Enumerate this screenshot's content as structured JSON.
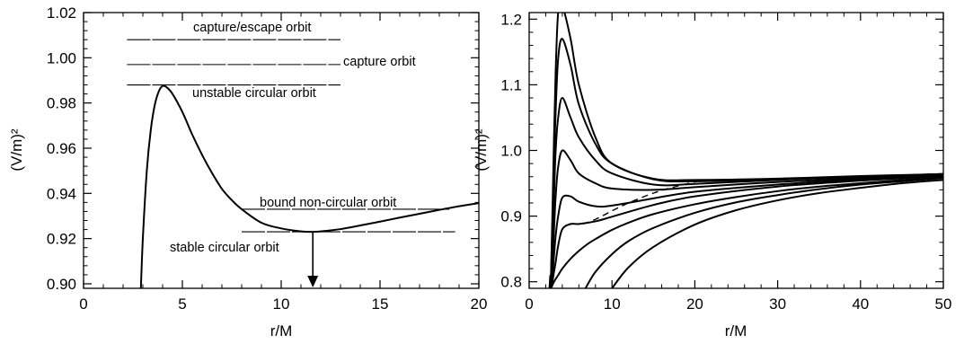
{
  "chart_data": [
    {
      "type": "line",
      "xlabel": "r/M",
      "ylabel": "(V/m)²",
      "xlim": [
        0,
        20
      ],
      "ylim": [
        0.898,
        1.02
      ],
      "xticks": [
        0,
        5,
        10,
        15,
        20
      ],
      "yticks": [
        0.9,
        0.92,
        0.94,
        0.96,
        0.98,
        1.0,
        1.02
      ],
      "ytick_labels": [
        "0.90",
        "0.92",
        "0.94",
        "0.96",
        "0.98",
        "1.00",
        "1.02"
      ],
      "grid": false,
      "series": [
        {
          "x": [
            2.9,
            3.0,
            3.2,
            3.4,
            3.6,
            3.8,
            4.0,
            4.2,
            4.5,
            5.0,
            5.5,
            6.0,
            6.5,
            7.0,
            7.5,
            8.0,
            9.0,
            10.0,
            11.0,
            11.6,
            12.0,
            13.0,
            14.0,
            15.0,
            16.0,
            17.0,
            18.0,
            19.0,
            20.0
          ],
          "y": [
            0.898,
            0.92,
            0.95,
            0.968,
            0.979,
            0.985,
            0.9875,
            0.987,
            0.984,
            0.976,
            0.966,
            0.957,
            0.949,
            0.942,
            0.937,
            0.933,
            0.927,
            0.9245,
            0.9232,
            0.923,
            0.9232,
            0.9242,
            0.9258,
            0.9275,
            0.9293,
            0.931,
            0.9327,
            0.9343,
            0.9357
          ]
        }
      ],
      "annotations": [
        {
          "text": "capture/escape orbit",
          "y": 1.008,
          "x_range": [
            2.2,
            13.0
          ],
          "dash": "long"
        },
        {
          "text": "capture orbit",
          "y": 0.997,
          "x_range": [
            2.2,
            13.0
          ],
          "dash": "long"
        },
        {
          "text": "unstable circular orbit",
          "y": 0.988,
          "x_range": [
            2.2,
            13.0
          ],
          "dash": "long"
        },
        {
          "text": "bound non-circular orbit",
          "y": 0.933,
          "x_range": [
            8.0,
            18.5
          ],
          "dash": "long"
        },
        {
          "text": "stable circular orbit",
          "y": 0.923,
          "x_range": [
            8.0,
            18.8
          ],
          "dash": "long"
        }
      ],
      "arrow": {
        "x": 11.6,
        "y_from": 0.923,
        "y_to": 0.898
      }
    },
    {
      "type": "line",
      "xlabel": "r/M",
      "ylabel": "(V/m)²",
      "xlim": [
        0,
        50
      ],
      "ylim": [
        0.79,
        1.21
      ],
      "xticks": [
        0,
        10,
        20,
        30,
        40,
        50
      ],
      "yticks": [
        0.8,
        0.9,
        1.0,
        1.1,
        1.2
      ],
      "ytick_labels": [
        "0.8",
        "0.9",
        "1.0",
        "1.1",
        "1.2"
      ],
      "grid": false,
      "series": [
        {
          "x": [
            2.6,
            2.8,
            3.0,
            3.2,
            3.5,
            4.0,
            5.0,
            6.0,
            8.0,
            10.0,
            15.0,
            20.0,
            30.0,
            40.0,
            50.0
          ],
          "y": [
            0.79,
            0.9,
            1.02,
            1.12,
            1.21,
            1.22,
            1.17,
            1.1,
            1.02,
            0.98,
            0.957,
            0.955,
            0.957,
            0.961,
            0.964
          ]
        },
        {
          "x": [
            2.6,
            2.8,
            3.0,
            3.2,
            3.5,
            4.0,
            5.0,
            6.0,
            8.0,
            10.0,
            15.0,
            20.0,
            30.0,
            40.0,
            50.0
          ],
          "y": [
            0.79,
            0.88,
            0.98,
            1.06,
            1.14,
            1.17,
            1.13,
            1.07,
            1.01,
            0.98,
            0.956,
            0.953,
            0.956,
            0.96,
            0.964
          ]
        },
        {
          "x": [
            2.6,
            2.8,
            3.0,
            3.2,
            3.5,
            4.0,
            5.0,
            6.0,
            8.0,
            10.0,
            15.0,
            20.0,
            30.0,
            40.0,
            50.0
          ],
          "y": [
            0.79,
            0.85,
            0.93,
            1.0,
            1.05,
            1.08,
            1.05,
            1.02,
            0.985,
            0.965,
            0.948,
            0.949,
            0.955,
            0.96,
            0.964
          ]
        },
        {
          "x": [
            2.6,
            2.8,
            3.0,
            3.2,
            3.5,
            4.0,
            5.0,
            6.0,
            8.0,
            10.0,
            15.0,
            20.0,
            30.0,
            40.0,
            50.0
          ],
          "y": [
            0.79,
            0.83,
            0.88,
            0.93,
            0.975,
            1.0,
            0.985,
            0.965,
            0.95,
            0.942,
            0.94,
            0.944,
            0.952,
            0.958,
            0.963
          ]
        },
        {
          "x": [
            2.6,
            2.8,
            3.0,
            3.2,
            3.5,
            4.0,
            5.0,
            6.0,
            8.0,
            10.0,
            15.0,
            20.0,
            30.0,
            40.0,
            50.0
          ],
          "y": [
            0.79,
            0.81,
            0.84,
            0.87,
            0.9,
            0.928,
            0.93,
            0.922,
            0.915,
            0.916,
            0.927,
            0.937,
            0.948,
            0.956,
            0.962
          ]
        },
        {
          "x": [
            2.6,
            2.8,
            3.0,
            3.2,
            3.5,
            4.0,
            5.0,
            6.0,
            8.0,
            10.0,
            15.0,
            20.0,
            30.0,
            40.0,
            50.0
          ],
          "y": [
            0.79,
            0.8,
            0.815,
            0.83,
            0.855,
            0.88,
            0.888,
            0.888,
            0.892,
            0.899,
            0.917,
            0.93,
            0.945,
            0.954,
            0.961
          ]
        },
        {
          "x": [
            2.65,
            3.0,
            3.5,
            4.0,
            5.0,
            6.0,
            7.0,
            8.0,
            10.0,
            12.0,
            15.0,
            20.0,
            25.0,
            30.0,
            35.0,
            40.0,
            45.0,
            50.0
          ],
          "y": [
            0.79,
            0.8,
            0.81,
            0.82,
            0.835,
            0.847,
            0.857,
            0.865,
            0.879,
            0.89,
            0.903,
            0.918,
            0.929,
            0.938,
            0.945,
            0.95,
            0.955,
            0.959
          ]
        },
        {
          "x": [
            6.8,
            8.0,
            10.0,
            12.0,
            15.0,
            20.0,
            25.0,
            30.0,
            35.0,
            40.0,
            45.0,
            50.0
          ],
          "y": [
            0.79,
            0.815,
            0.842,
            0.862,
            0.882,
            0.905,
            0.921,
            0.932,
            0.941,
            0.948,
            0.953,
            0.958
          ]
        },
        {
          "x": [
            10.0,
            12.0,
            15.0,
            20.0,
            25.0,
            30.0,
            35.0,
            40.0,
            45.0,
            50.0
          ],
          "y": [
            0.79,
            0.822,
            0.853,
            0.887,
            0.909,
            0.924,
            0.935,
            0.943,
            0.95,
            0.955
          ]
        },
        {
          "x": [
            2.45,
            2.5,
            2.55
          ],
          "y": [
            0.79,
            0.8,
            0.81
          ]
        }
      ],
      "dashed_series": {
        "x": [
          6.5,
          8.0,
          10.0,
          12.0,
          15.0,
          18.0,
          21.0
        ],
        "y": [
          0.888,
          0.895,
          0.908,
          0.92,
          0.935,
          0.946,
          0.955
        ]
      }
    }
  ]
}
